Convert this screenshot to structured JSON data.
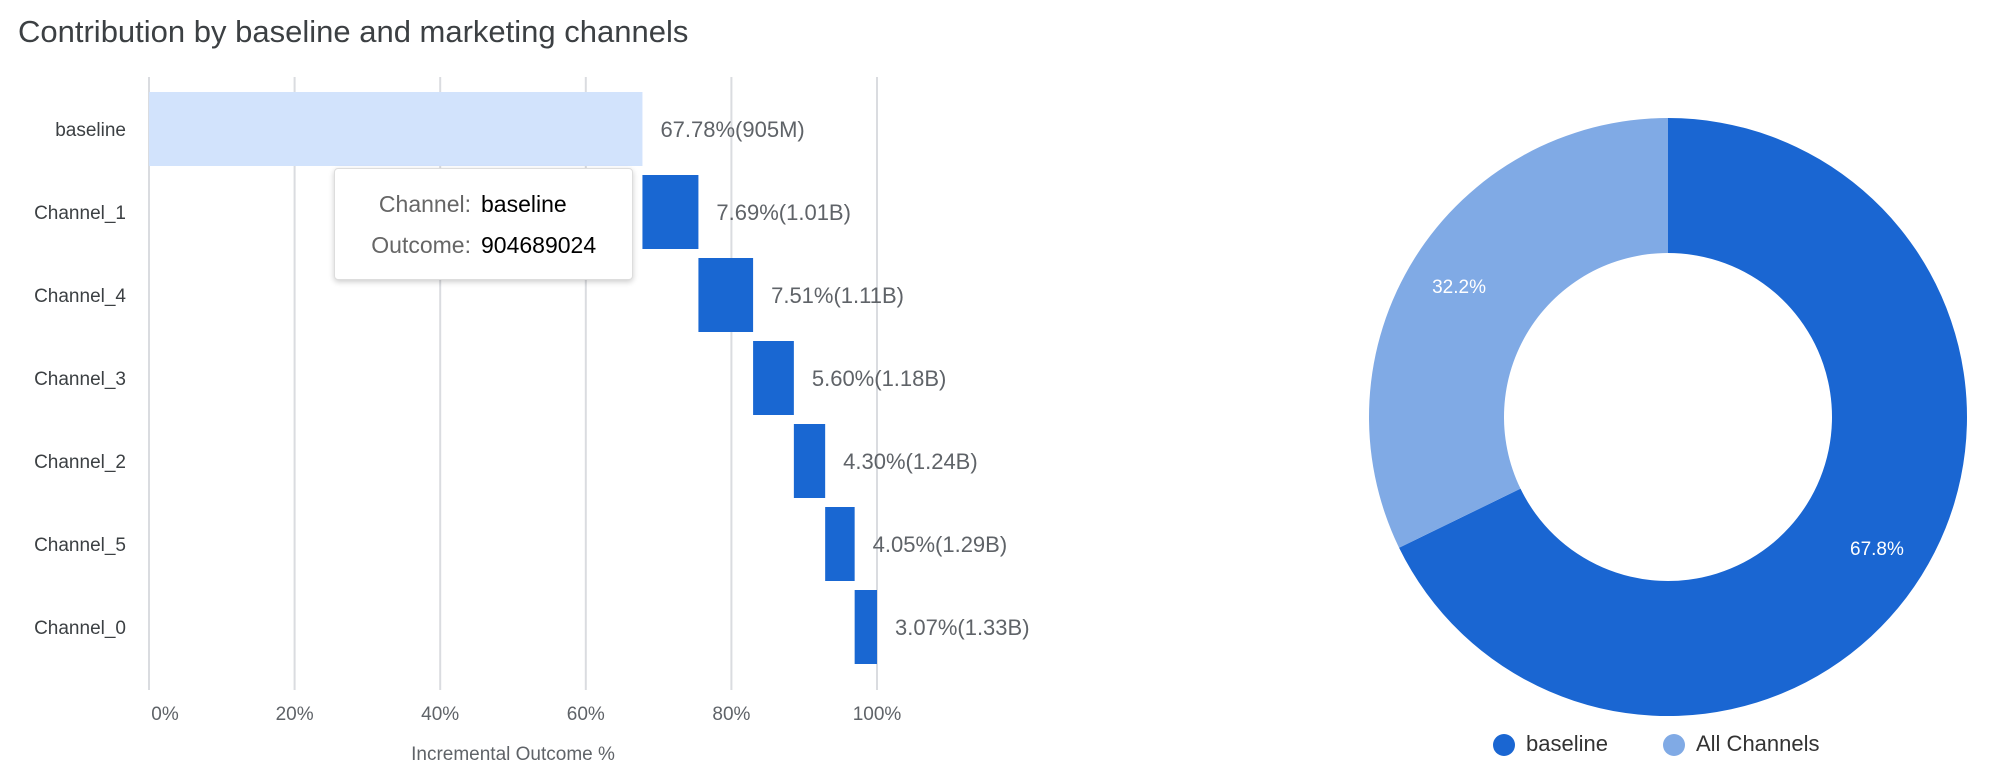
{
  "title": "Contribution by baseline and marketing channels",
  "chart_data": [
    {
      "type": "waterfall-bar",
      "orientation": "horizontal",
      "categories": [
        "baseline",
        "Channel_1",
        "Channel_4",
        "Channel_3",
        "Channel_2",
        "Channel_5",
        "Channel_0"
      ],
      "values": [
        67.78,
        7.69,
        7.51,
        5.6,
        4.3,
        4.05,
        3.07
      ],
      "data_labels": [
        "67.78%(905M)",
        "7.69%(1.01B)",
        "7.51%(1.11B)",
        "5.60%(1.18B)",
        "4.30%(1.24B)",
        "4.05%(1.29B)",
        "3.07%(1.33B)"
      ],
      "xlabel": "Incremental Outcome %",
      "xlim": [
        0,
        100
      ],
      "xticks": [
        "0%",
        "20%",
        "40%",
        "60%",
        "80%",
        "100%"
      ],
      "grid": true,
      "colors": {
        "baseline": "#d2e3fc",
        "channel": "#1967d2"
      },
      "tooltip": {
        "channel_label": "Channel:",
        "channel_value": "baseline",
        "outcome_label": "Outcome:",
        "outcome_value": "904689024"
      }
    },
    {
      "type": "pie",
      "donut": true,
      "slices": [
        {
          "name": "baseline",
          "value": 67.8,
          "label": "67.8%",
          "color": "#1a66d2"
        },
        {
          "name": "All Channels",
          "value": 32.2,
          "label": "32.2%",
          "color": "#80aae5"
        }
      ],
      "legend": "bottom"
    }
  ]
}
